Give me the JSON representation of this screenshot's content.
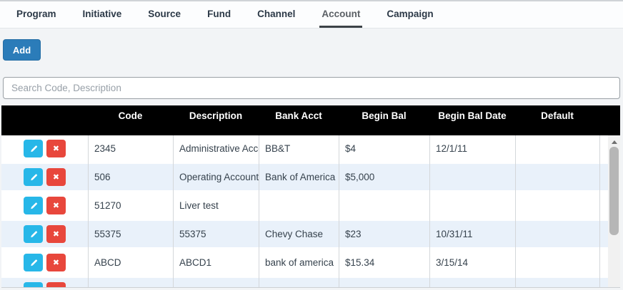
{
  "tabs": [
    {
      "label": "Program",
      "active": false
    },
    {
      "label": "Initiative",
      "active": false
    },
    {
      "label": "Source",
      "active": false
    },
    {
      "label": "Fund",
      "active": false
    },
    {
      "label": "Channel",
      "active": false
    },
    {
      "label": "Account",
      "active": true
    },
    {
      "label": "Campaign",
      "active": false
    }
  ],
  "toolbar": {
    "add_label": "Add"
  },
  "search": {
    "placeholder": "Search Code, Description",
    "value": ""
  },
  "table": {
    "columns": [
      {
        "label": ""
      },
      {
        "label": "Code"
      },
      {
        "label": "Description"
      },
      {
        "label": "Bank Acct"
      },
      {
        "label": "Begin Bal"
      },
      {
        "label": "Begin Bal Date"
      },
      {
        "label": "Default"
      }
    ],
    "rows": [
      {
        "code": "2345",
        "description": "Administrative Account",
        "bank_acct": "BB&T",
        "begin_bal": "$4",
        "begin_bal_date": "12/1/11",
        "default": ""
      },
      {
        "code": "506",
        "description": "Operating Account",
        "bank_acct": "Bank of America",
        "begin_bal": "$5,000",
        "begin_bal_date": "",
        "default": ""
      },
      {
        "code": "51270",
        "description": "Liver test",
        "bank_acct": "",
        "begin_bal": "",
        "begin_bal_date": "",
        "default": ""
      },
      {
        "code": "55375",
        "description": "55375",
        "bank_acct": "Chevy Chase",
        "begin_bal": "$23",
        "begin_bal_date": "10/31/11",
        "default": ""
      },
      {
        "code": "ABCD",
        "description": "ABCD1",
        "bank_acct": "bank of america",
        "begin_bal": "$15.34",
        "begin_bal_date": "3/15/14",
        "default": ""
      },
      {
        "code": "",
        "description": "",
        "bank_acct": "",
        "begin_bal": "",
        "begin_bal_date": "",
        "default": ""
      }
    ]
  },
  "icons": {
    "edit": "pencil-icon",
    "delete": "x-icon",
    "delete_glyph": "✖",
    "scroll_up": "scrollbar-up-icon"
  },
  "colors": {
    "add_button": "#2b7cb9",
    "edit_button": "#27b7e8",
    "delete_button": "#e8473c",
    "header_bg": "#000000",
    "row_stripe": "#e9f1fa",
    "active_tab_underline": "#3c4247"
  }
}
